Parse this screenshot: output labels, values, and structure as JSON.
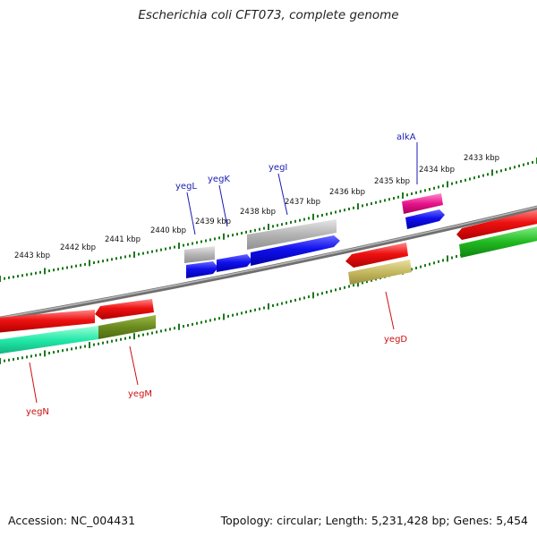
{
  "title": "Escherichia coli CFT073, complete genome",
  "footer": {
    "accession": "Accession: NC_004431",
    "summary": "Topology: circular; Length: 5,231,428 bp; Genes: 5,454"
  },
  "colors": {
    "backbone": "#8a8a8a",
    "ruler_tick": "#1a7a1a",
    "label_blue": "#1b1bb5",
    "label_red": "#cc1111"
  },
  "ruler_labels": [
    {
      "text": "2433 kbp"
    },
    {
      "text": "2434 kbp"
    },
    {
      "text": "2435 kbp"
    },
    {
      "text": "2436 kbp"
    },
    {
      "text": "2437 kbp"
    },
    {
      "text": "2438 kbp"
    },
    {
      "text": "2439 kbp"
    },
    {
      "text": "2440 kbp"
    },
    {
      "text": "2441 kbp"
    },
    {
      "text": "2442 kbp"
    },
    {
      "text": "2443 kbp"
    }
  ],
  "genes_forward": [
    {
      "name": "alkA"
    },
    {
      "name": "yegI"
    },
    {
      "name": "yegK"
    },
    {
      "name": "yegL"
    }
  ],
  "genes_reverse": [
    {
      "name": "yegD"
    },
    {
      "name": "yegM"
    },
    {
      "name": "yegN"
    }
  ]
}
